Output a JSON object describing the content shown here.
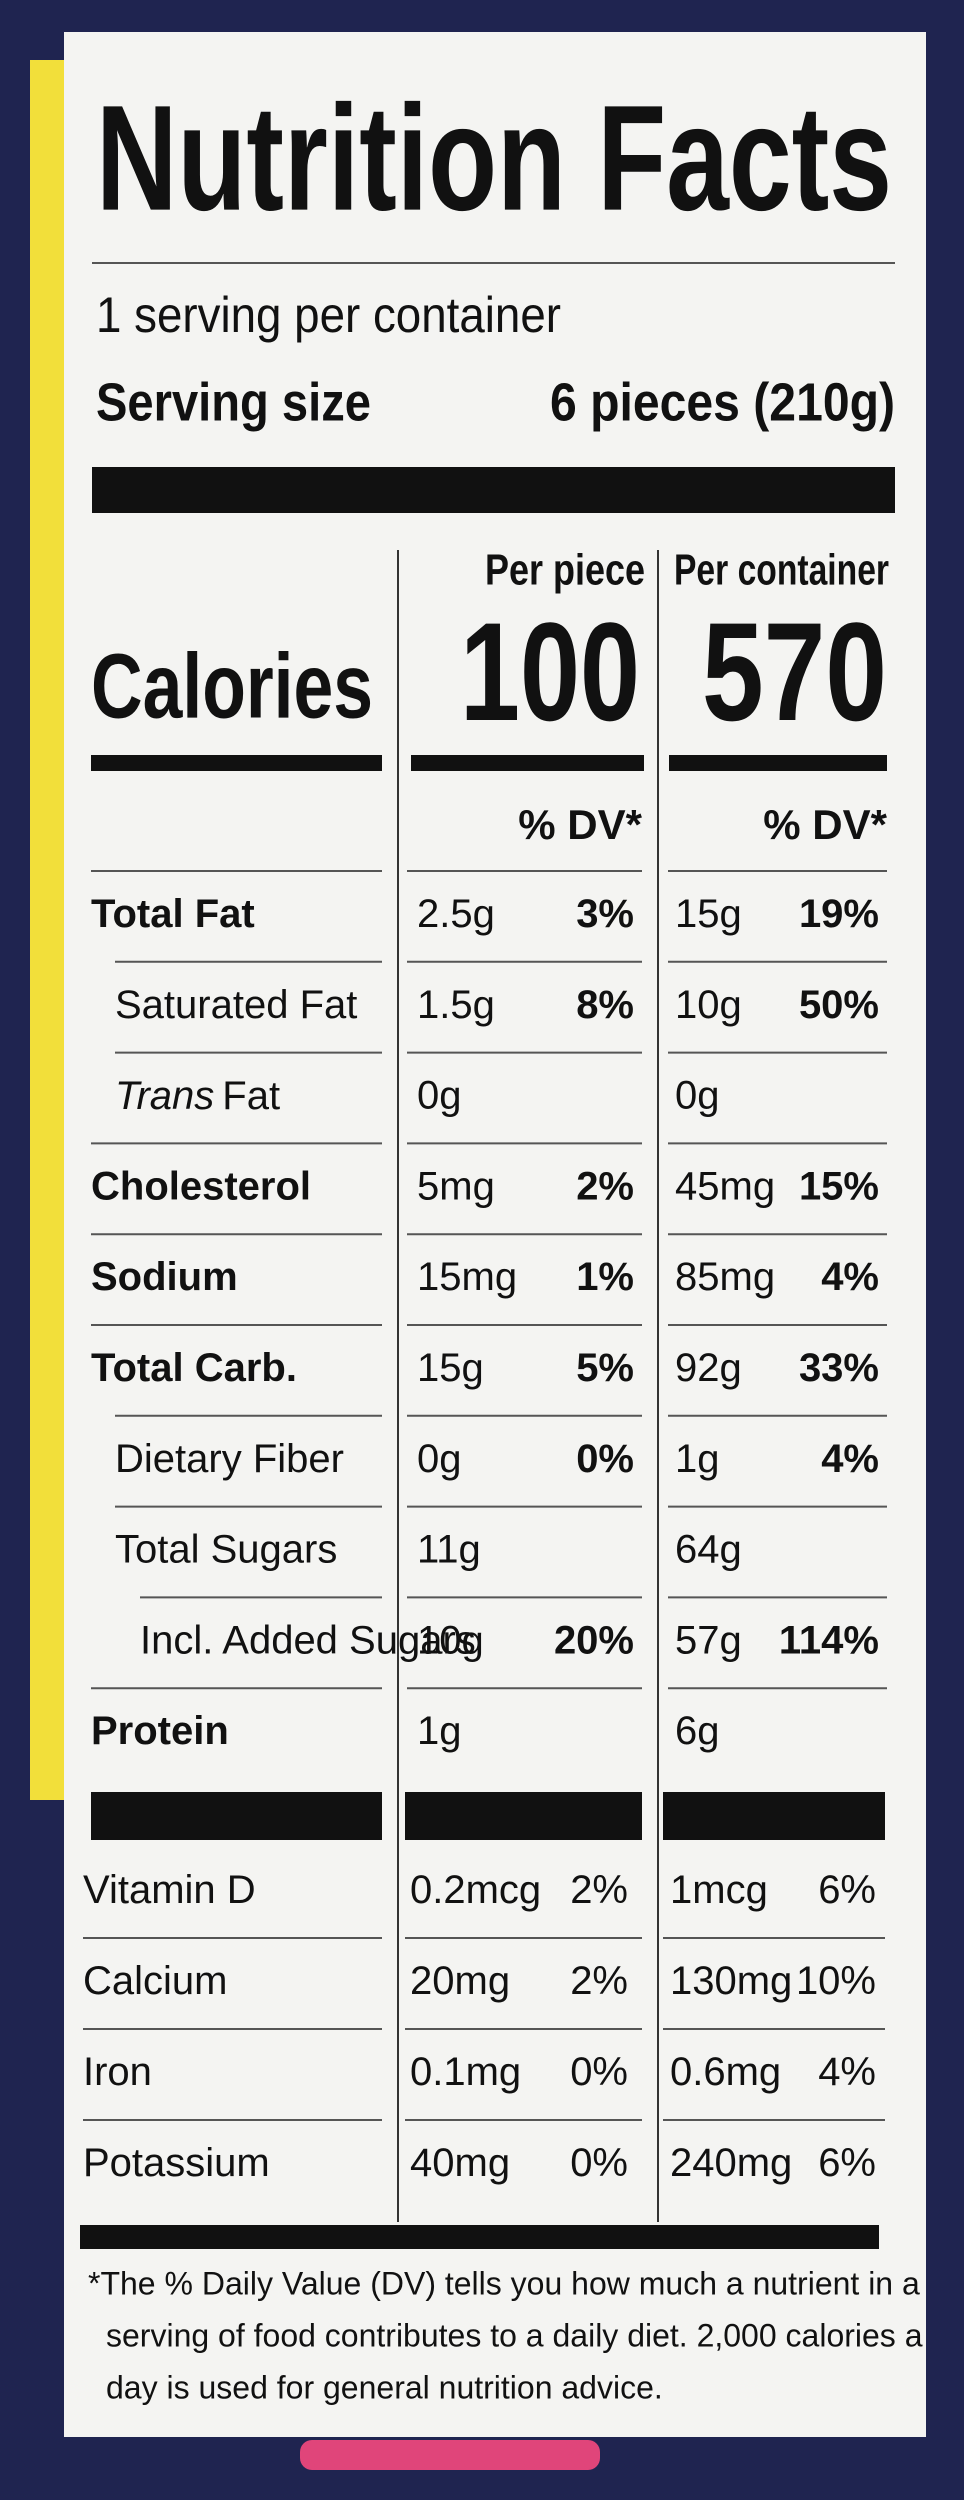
{
  "header": {
    "title": "Nutrition Facts",
    "servings": "1 serving per container",
    "serving_size_label": "Serving size",
    "serving_size": "6 pieces (210g)"
  },
  "columns": {
    "per_piece": "Per piece",
    "per_container": "Per container"
  },
  "calories": {
    "label": "Calories",
    "per_piece": "100",
    "per_container": "570"
  },
  "dv_header": {
    "per_piece": "% DV*",
    "per_container": "% DV*"
  },
  "nutrients": [
    {
      "name": "Total Fat",
      "bold": true,
      "indent": 0,
      "piece": "2.5g",
      "piece_dv": "3%",
      "container": "15g",
      "container_dv": "19%"
    },
    {
      "name": "Saturated Fat",
      "bold": false,
      "indent": 1,
      "piece": "1.5g",
      "piece_dv": "8%",
      "container": "10g",
      "container_dv": "50%"
    },
    {
      "italic": "Trans",
      "name": "Fat",
      "bold": false,
      "indent": 1,
      "piece": "0g",
      "container": "0g"
    },
    {
      "name": "Cholesterol",
      "bold": true,
      "indent": 0,
      "piece": "5mg",
      "piece_dv": "2%",
      "container": "45mg",
      "container_dv": "15%"
    },
    {
      "name": "Sodium",
      "bold": true,
      "indent": 0,
      "piece": "15mg",
      "piece_dv": "1%",
      "container": "85mg",
      "container_dv": "4%"
    },
    {
      "name": "Total Carb.",
      "bold": true,
      "indent": 0,
      "piece": "15g",
      "piece_dv": "5%",
      "container": "92g",
      "container_dv": "33%"
    },
    {
      "name": "Dietary Fiber",
      "bold": false,
      "indent": 1,
      "piece": "0g",
      "piece_dv": "0%",
      "container": "1g",
      "container_dv": "4%"
    },
    {
      "name": "Total Sugars",
      "bold": false,
      "indent": 1,
      "piece": "11g",
      "container": "64g"
    },
    {
      "name": "Incl. Added Sugars",
      "bold": false,
      "indent": 2,
      "piece": "10g",
      "piece_dv": "20%",
      "container": "57g",
      "container_dv": "114%"
    },
    {
      "name": "Protein",
      "bold": true,
      "indent": 0,
      "piece": "1g",
      "container": "6g"
    }
  ],
  "vitamins": [
    {
      "name": "Vitamin D",
      "piece": "0.2mcg",
      "piece_dv": "2%",
      "container": "1mcg",
      "container_dv": "6%"
    },
    {
      "name": "Calcium",
      "piece": "20mg",
      "piece_dv": "2%",
      "container": "130mg",
      "container_dv": "10%"
    },
    {
      "name": "Iron",
      "piece": "0.1mg",
      "piece_dv": "0%",
      "container": "0.6mg",
      "container_dv": "4%"
    },
    {
      "name": "Potassium",
      "piece": "40mg",
      "piece_dv": "0%",
      "container": "240mg",
      "container_dv": "6%"
    }
  ],
  "footnote": [
    "*The % Daily Value (DV) tells you how much a nutrient in a",
    "serving of food contributes to a daily diet. 2,000 calories a",
    "day is used for general nutrition advice."
  ]
}
